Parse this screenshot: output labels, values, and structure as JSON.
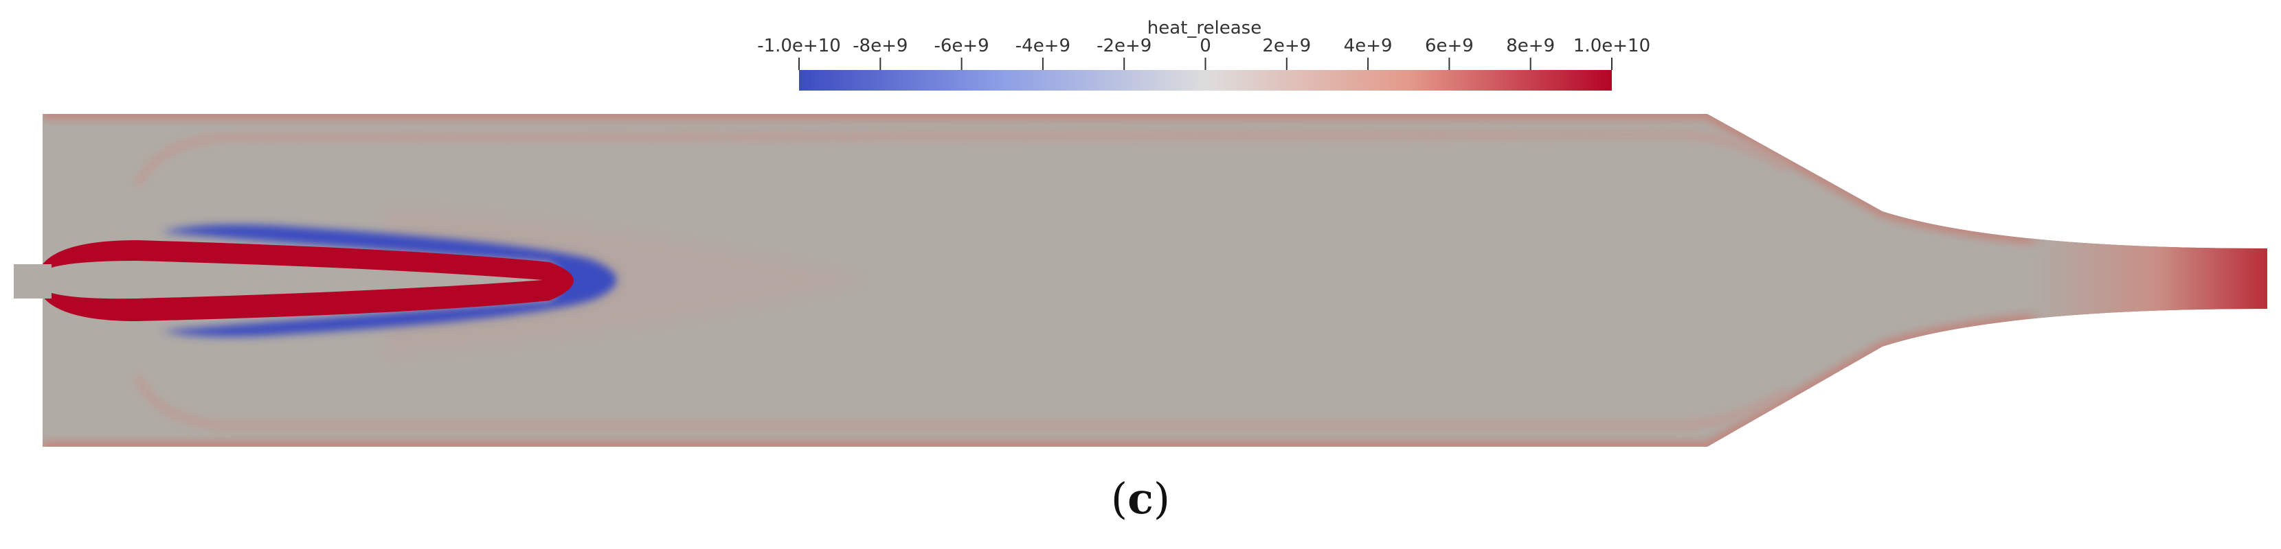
{
  "colorbar": {
    "title": "heat_release",
    "ticks": [
      {
        "value": -10000000000.0,
        "label": "-1.0e+10"
      },
      {
        "value": -8000000000.0,
        "label": "-8e+9"
      },
      {
        "value": -6000000000.0,
        "label": "-6e+9"
      },
      {
        "value": -4000000000.0,
        "label": "-4e+9"
      },
      {
        "value": -2000000000.0,
        "label": "-2e+9"
      },
      {
        "value": 0,
        "label": "0"
      },
      {
        "value": 2000000000.0,
        "label": "2e+9"
      },
      {
        "value": 4000000000.0,
        "label": "4e+9"
      },
      {
        "value": 6000000000.0,
        "label": "6e+9"
      },
      {
        "value": 8000000000.0,
        "label": "8e+9"
      },
      {
        "value": 10000000000.0,
        "label": "1.0e+10"
      }
    ],
    "range": [
      -10000000000.0,
      10000000000.0
    ],
    "colormap": {
      "low": "#3b4cc0",
      "mid": "#dddddd",
      "high": "#b40426"
    }
  },
  "field": {
    "background_color": "#b0aba5",
    "positive_color": "#b40426",
    "negative_color": "#3b4cc0"
  },
  "caption": {
    "open": "(",
    "letter": "c",
    "close": ")"
  }
}
